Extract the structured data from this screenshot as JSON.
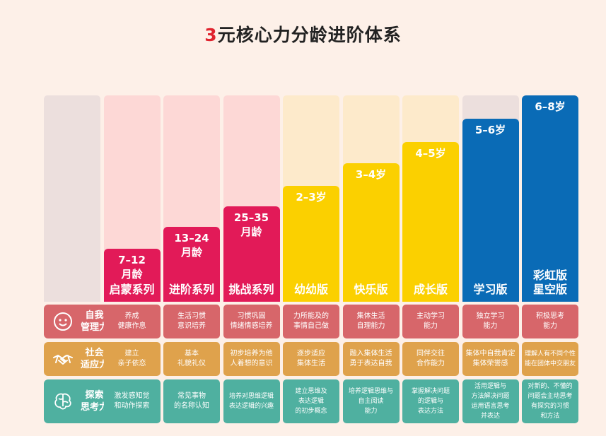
{
  "title": {
    "highlight": "3",
    "rest": "元核心力分龄进阶体系"
  },
  "colors": {
    "pink_light": "#fdd8d6",
    "crimson": "#e21a58",
    "yellow_light": "#fdeacb",
    "yellow": "#fbd000",
    "blue": "#0a6bb6",
    "gray": "#ecdfdd",
    "row_self": "#d7666a",
    "row_social": "#dfa24c",
    "row_think": "#4fb0a0"
  },
  "stages": [
    {
      "age": "",
      "series": ""
    },
    {
      "age": "7–12\n月龄",
      "series": "启蒙系列"
    },
    {
      "age": "13–24\n月龄",
      "series": "进阶系列"
    },
    {
      "age": "25–35\n月龄",
      "series": "挑战系列"
    },
    {
      "age": "2–3岁",
      "series": "幼幼版"
    },
    {
      "age": "3–4岁",
      "series": "快乐版"
    },
    {
      "age": "4–5岁",
      "series": "成长版"
    },
    {
      "age": "5–6岁",
      "series": "学习版"
    },
    {
      "age": "6–8岁",
      "series": "彩虹版\n星空版"
    }
  ],
  "rows": [
    {
      "label": "自我\n管理力",
      "icon": "face-icon",
      "cells": [
        "养成\n健康作息",
        "生活习惯\n意识培养",
        "习惯巩固\n情绪情感培养",
        "力所能及的\n事情自己做",
        "集体生活\n自理能力",
        "主动学习\n能力",
        "独立学习\n能力",
        "积极思考\n能力"
      ]
    },
    {
      "label": "社会\n适应力",
      "icon": "handshake-icon",
      "cells": [
        "建立\n亲子依恋",
        "基本\n礼貌礼仪",
        "初步培养为他\n人着想的意识",
        "逐步适应\n集体生活",
        "融入集体生活\n勇于表达自我",
        "同伴交往\n合作能力",
        "集体中自我肯定\n集体荣誉感",
        "理解人有不同个性\n能在团体中交朋友"
      ]
    },
    {
      "label": "探索\n思考力",
      "icon": "brain-icon",
      "cells": [
        "激发感知觉\n和动作探索",
        "常见事物\n的名称认知",
        "培养对思维逻辑\n表达逻辑的兴趣",
        "建立思维及\n表达逻辑\n的初步概念",
        "培养逻辑思维与\n自主阅读\n能力",
        "掌握解决问题\n的逻辑与\n表达方法",
        "活用逻辑与\n方法解决问题\n运用语言思考\n并表达",
        "对新的、不懂的\n问题会主动思考\n有探究的习惯\n和方法"
      ]
    }
  ]
}
